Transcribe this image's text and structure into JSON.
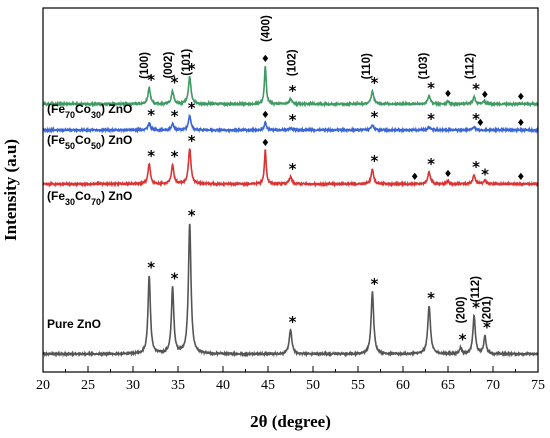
{
  "chart_data": {
    "type": "line",
    "xlabel": "2θ (degree)",
    "ylabel": "Intensity (a.u)",
    "xlim": [
      20,
      75
    ],
    "xticks": [
      "20",
      "25",
      "30",
      "35",
      "40",
      "45",
      "50",
      "55",
      "60",
      "65",
      "70",
      "75"
    ],
    "marker_symbols": {
      "star": "*",
      "diamond": "♦"
    },
    "series": [
      {
        "name": "Pure ZnO",
        "name_parts": [
          "Pure ZnO"
        ],
        "color": "#555555",
        "baseline": 8,
        "peaks": [
          {
            "x": 31.8,
            "h": 78,
            "w": 0.16
          },
          {
            "x": 34.4,
            "h": 66,
            "w": 0.16
          },
          {
            "x": 36.3,
            "h": 130,
            "w": 0.17
          },
          {
            "x": 47.5,
            "h": 24,
            "w": 0.18
          },
          {
            "x": 56.6,
            "h": 62,
            "w": 0.17
          },
          {
            "x": 62.9,
            "h": 48,
            "w": 0.18
          },
          {
            "x": 66.4,
            "h": 6,
            "w": 0.15
          },
          {
            "x": 67.9,
            "h": 38,
            "w": 0.16
          },
          {
            "x": 69.1,
            "h": 18,
            "w": 0.15
          }
        ],
        "stars_at": [
          31.8,
          34.4,
          36.3,
          47.5,
          56.6,
          62.9,
          66.4,
          67.9,
          69.1
        ],
        "hkl": [
          {
            "x": 66.4,
            "text": "(200)"
          },
          {
            "x": 68.0,
            "text": "(112)"
          },
          {
            "x": 69.3,
            "text": "(201)"
          }
        ]
      },
      {
        "name": "(Fe30Co70) ZnO",
        "name_parts": [
          "(Fe",
          "30",
          "Co",
          "70",
          ") ZnO"
        ],
        "color": "#d93434",
        "baseline": 178,
        "peaks": [
          {
            "x": 31.8,
            "h": 20,
            "w": 0.16
          },
          {
            "x": 34.4,
            "h": 19,
            "w": 0.16
          },
          {
            "x": 36.3,
            "h": 35,
            "w": 0.17
          },
          {
            "x": 44.7,
            "h": 34,
            "w": 0.12
          },
          {
            "x": 47.5,
            "h": 7,
            "w": 0.17
          },
          {
            "x": 56.6,
            "h": 15,
            "w": 0.16
          },
          {
            "x": 62.9,
            "h": 12,
            "w": 0.17
          },
          {
            "x": 65.0,
            "h": 3,
            "w": 0.14
          },
          {
            "x": 67.9,
            "h": 9,
            "w": 0.16
          },
          {
            "x": 69.1,
            "h": 4,
            "w": 0.15
          }
        ],
        "stars_at": [
          31.8,
          34.4,
          36.3,
          47.5,
          56.6,
          62.9,
          67.9,
          68.9
        ],
        "diamonds_at": [
          44.7,
          61.3,
          65.0,
          73.1
        ]
      },
      {
        "name": "(Fe50Co50) ZnO",
        "name_parts": [
          "(Fe",
          "50",
          "Co",
          "50",
          ") ZnO"
        ],
        "color": "#3a66d6",
        "baseline": 232,
        "peaks": [
          {
            "x": 31.8,
            "h": 7,
            "w": 0.16
          },
          {
            "x": 34.4,
            "h": 6,
            "w": 0.16
          },
          {
            "x": 36.3,
            "h": 14,
            "w": 0.17
          },
          {
            "x": 44.7,
            "h": 8,
            "w": 0.12
          },
          {
            "x": 47.5,
            "h": 2,
            "w": 0.17
          },
          {
            "x": 56.6,
            "h": 5,
            "w": 0.16
          },
          {
            "x": 62.9,
            "h": 3,
            "w": 0.17
          },
          {
            "x": 67.9,
            "h": 3,
            "w": 0.16
          }
        ],
        "stars_at": [
          31.8,
          34.4,
          36.3,
          47.5,
          56.6,
          62.9,
          67.9
        ],
        "diamonds_at": [
          44.7,
          68.6,
          73.1
        ]
      },
      {
        "name": "(Fe70Co30) ZnO",
        "name_parts": [
          "(Fe",
          "70",
          "Co",
          "30",
          ") ZnO"
        ],
        "color": "#3f9a64",
        "baseline": 258,
        "peaks": [
          {
            "x": 31.8,
            "h": 16,
            "w": 0.16
          },
          {
            "x": 34.4,
            "h": 13,
            "w": 0.16
          },
          {
            "x": 36.3,
            "h": 27,
            "w": 0.17
          },
          {
            "x": 44.7,
            "h": 38,
            "w": 0.12
          },
          {
            "x": 47.5,
            "h": 5,
            "w": 0.17
          },
          {
            "x": 56.6,
            "h": 13,
            "w": 0.16
          },
          {
            "x": 62.9,
            "h": 8,
            "w": 0.17
          },
          {
            "x": 65.0,
            "h": 3,
            "w": 0.14
          },
          {
            "x": 67.9,
            "h": 7,
            "w": 0.16
          },
          {
            "x": 69.0,
            "h": 3,
            "w": 0.15
          }
        ],
        "stars_at": [
          31.8,
          34.4,
          36.3,
          47.5,
          56.6,
          62.9,
          67.9
        ],
        "diamonds_at": [
          44.7,
          65.0,
          69.1,
          73.1
        ],
        "hkl": [
          {
            "x": 31.2,
            "text": "(100)"
          },
          {
            "x": 33.9,
            "text": "(002)"
          },
          {
            "x": 35.9,
            "text": "(101)"
          },
          {
            "x": 44.7,
            "text": "(400)"
          },
          {
            "x": 47.6,
            "text": "(102)"
          },
          {
            "x": 55.9,
            "text": "(110)"
          },
          {
            "x": 62.2,
            "text": "(103)"
          },
          {
            "x": 67.4,
            "text": "(112)"
          }
        ]
      }
    ]
  }
}
